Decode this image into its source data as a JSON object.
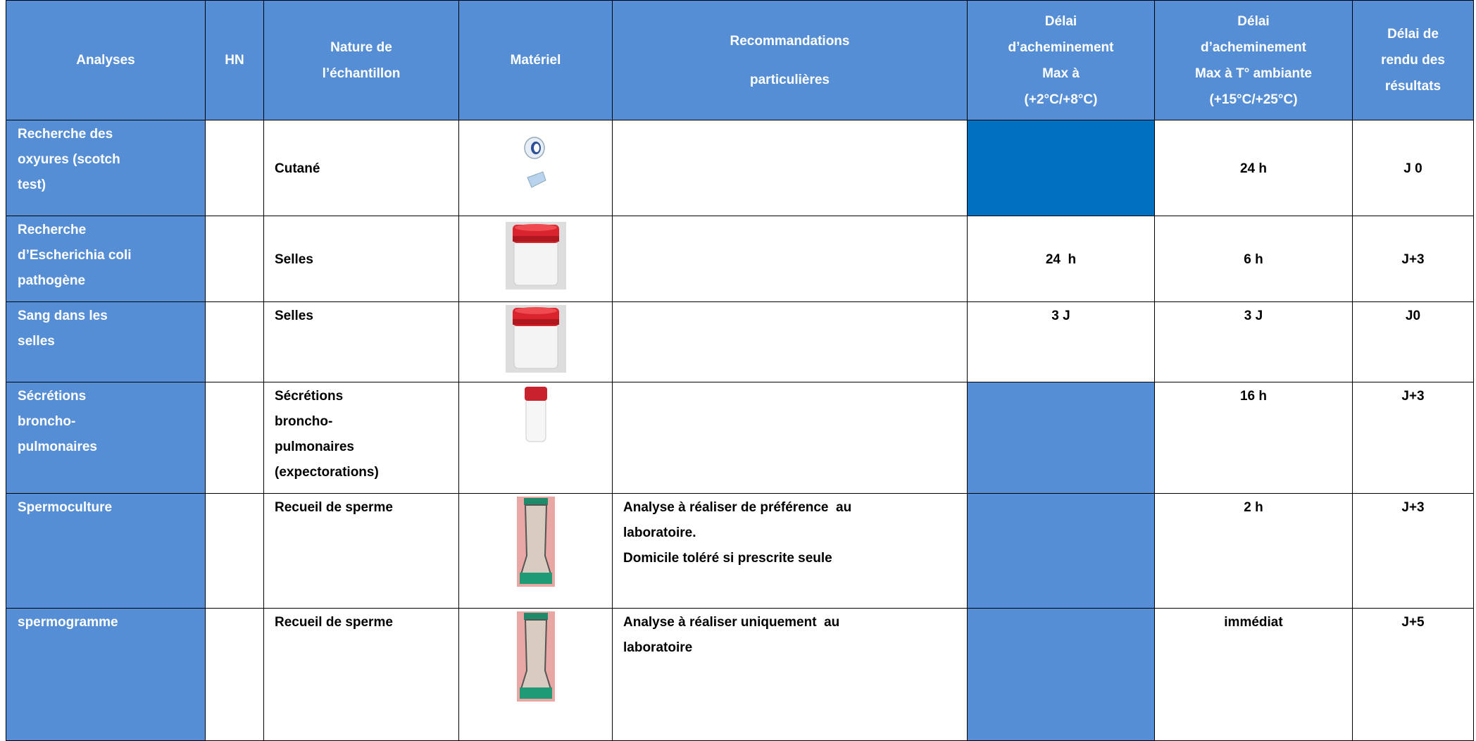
{
  "table": {
    "header": {
      "analyses": [
        "Analyses"
      ],
      "hn": [
        "HN"
      ],
      "nature": [
        "Nature de",
        "l’échantillon"
      ],
      "materiel": [
        "Matériel"
      ],
      "recommandations": [
        "Recommandations",
        "particulières"
      ],
      "delai_refrigere": [
        "Délai",
        "d’acheminement",
        "Max à",
        "(+2°C/+8°C)"
      ],
      "delai_ambiant": [
        "Délai",
        "d’acheminement",
        "Max à T° ambiante",
        "(+15°C/+25°C)"
      ],
      "delai_rendu": [
        "Délai de",
        "rendu des",
        "résultats"
      ]
    },
    "rows": [
      {
        "analyses": [
          "Recherche des",
          "oxyures (scotch",
          "test)"
        ],
        "nature": [
          "Cutané"
        ],
        "delai_ambiant": "24 h",
        "delai_rendu": "J 0"
      },
      {
        "analyses": [
          "Recherche",
          "d’Escherichia coli",
          "pathogène"
        ],
        "nature": [
          "Selles"
        ],
        "delai_refrigere": "24  h",
        "delai_ambiant": "6 h",
        "delai_rendu": "J+3"
      },
      {
        "analyses": [
          "Sang dans les",
          "selles"
        ],
        "nature": [
          "Selles"
        ],
        "delai_refrigere": "3 J",
        "delai_ambiant": "3 J",
        "delai_rendu": "J0"
      },
      {
        "analyses": [
          "Sécrétions",
          "broncho-",
          "pulmonaires"
        ],
        "nature": [
          "Sécrétions",
          "broncho-",
          "pulmonaires",
          "(expectorations)"
        ],
        "delai_ambiant": "16 h",
        "delai_rendu": "J+3"
      },
      {
        "analyses": [
          "Spermoculture"
        ],
        "nature": [
          "Recueil de sperme"
        ],
        "recommandations": [
          "Analyse à réaliser de préférence  au",
          "laboratoire.",
          "Domicile toléré si prescrite seule"
        ],
        "delai_ambiant": "2 h",
        "delai_rendu": "J+3"
      },
      {
        "analyses": [
          "spermogramme"
        ],
        "nature": [
          "Recueil de sperme"
        ],
        "recommandations": [
          "Analyse à réaliser uniquement  au",
          "laboratoire"
        ],
        "delai_ambiant": "immédiat",
        "delai_rendu": "J+5"
      }
    ]
  }
}
